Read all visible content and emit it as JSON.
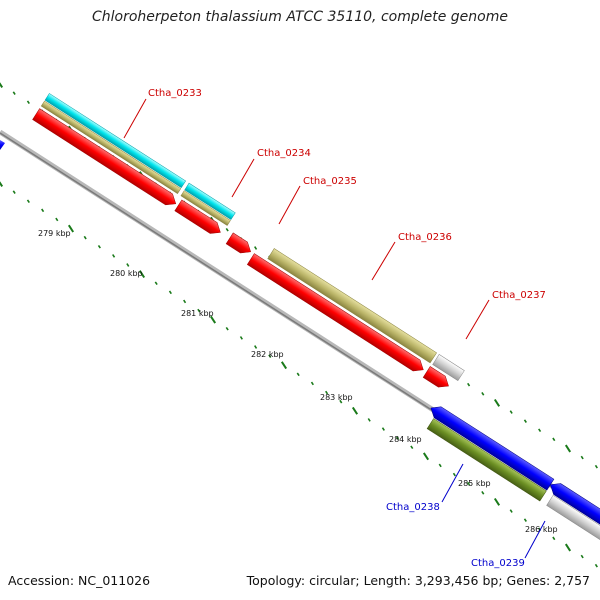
{
  "title": "Chloroherpeton thalassium ATCC 35110, complete genome",
  "footer": {
    "accession": "Accession: NC_011026",
    "topology": "Topology: circular; Length: 3,293,456 bp; Genes: 2,757"
  },
  "colors": {
    "forward_label": "#cc0000",
    "reverse_label": "#0000cc",
    "tick": "#1a7a1a",
    "backbone": "#9a9a9a",
    "cds_red": "#ff0000",
    "cds_blue": "#0000ff",
    "cyan": "#00e5ee",
    "khaki": "#bdb76b",
    "gray": "#cfcfcf",
    "olive": "#6b8e23"
  },
  "kbp_labels": [
    "279 kbp",
    "280 kbp",
    "281 kbp",
    "282 kbp",
    "283 kbp",
    "284 kbp",
    "285 kbp",
    "286 kbp"
  ],
  "gene_labels": [
    {
      "text": "Ctha_0233",
      "strand": "forward"
    },
    {
      "text": "Ctha_0234",
      "strand": "forward"
    },
    {
      "text": "Ctha_0235",
      "strand": "forward"
    },
    {
      "text": "Ctha_0236",
      "strand": "forward"
    },
    {
      "text": "Ctha_0237",
      "strand": "forward"
    },
    {
      "text": "Ctha_0238",
      "strand": "reverse"
    },
    {
      "text": "Ctha_0239",
      "strand": "reverse"
    }
  ]
}
